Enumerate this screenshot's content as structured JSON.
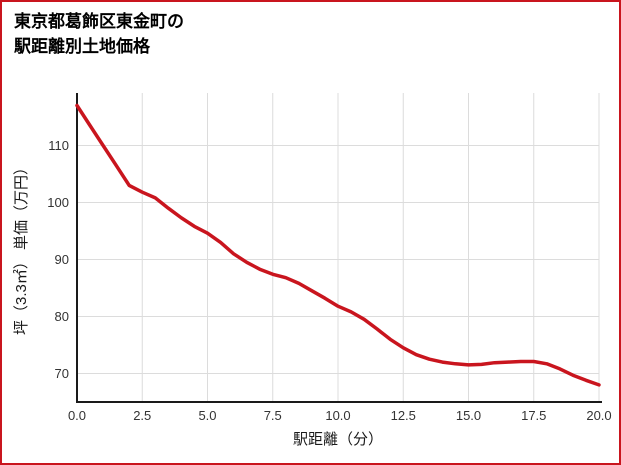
{
  "title_line1": "東京都葛飾区東金町の",
  "title_line2": "駅距離別土地価格",
  "chart_data": {
    "type": "line",
    "title": "東京都葛飾区東金町の駅距離別土地価格",
    "xlabel": "駅距離（分）",
    "ylabel": "坪（3.3㎡） 単価（万円）",
    "xlim": [
      0,
      20
    ],
    "ylim": [
      65,
      119.2
    ],
    "xticks": [
      0,
      2.5,
      5,
      7.5,
      10,
      12.5,
      15,
      17.5,
      20
    ],
    "xtick_labels": [
      "0.0",
      "2.5",
      "5.0",
      "7.5",
      "10.0",
      "12.5",
      "15.0",
      "17.5",
      "20.0"
    ],
    "yticks": [
      70,
      80,
      90,
      100,
      110
    ],
    "ytick_labels": [
      "70",
      "80",
      "90",
      "100",
      "110"
    ],
    "grid": true,
    "legend": "none",
    "line_color": "#c9151e",
    "x": [
      0,
      0.5,
      1,
      1.5,
      2,
      2.5,
      3,
      3.5,
      4,
      4.5,
      5,
      5.5,
      6,
      6.5,
      7,
      7.5,
      8,
      8.5,
      9,
      9.5,
      10,
      10.5,
      11,
      11.5,
      12,
      12.5,
      13,
      13.5,
      14,
      14.5,
      15,
      15.5,
      16,
      16.5,
      17,
      17.5,
      18,
      18.5,
      19,
      19.5,
      20
    ],
    "y": [
      117,
      113.5,
      110,
      106.5,
      103,
      101.8,
      100.8,
      99,
      97.3,
      95.8,
      94.6,
      93,
      91,
      89.5,
      88.3,
      87.4,
      86.8,
      85.8,
      84.5,
      83.2,
      81.8,
      80.8,
      79.5,
      77.8,
      76,
      74.5,
      73.3,
      72.5,
      72,
      71.7,
      71.5,
      71.6,
      71.9,
      72,
      72.1,
      72.1,
      71.7,
      70.8,
      69.7,
      68.8,
      68
    ]
  }
}
